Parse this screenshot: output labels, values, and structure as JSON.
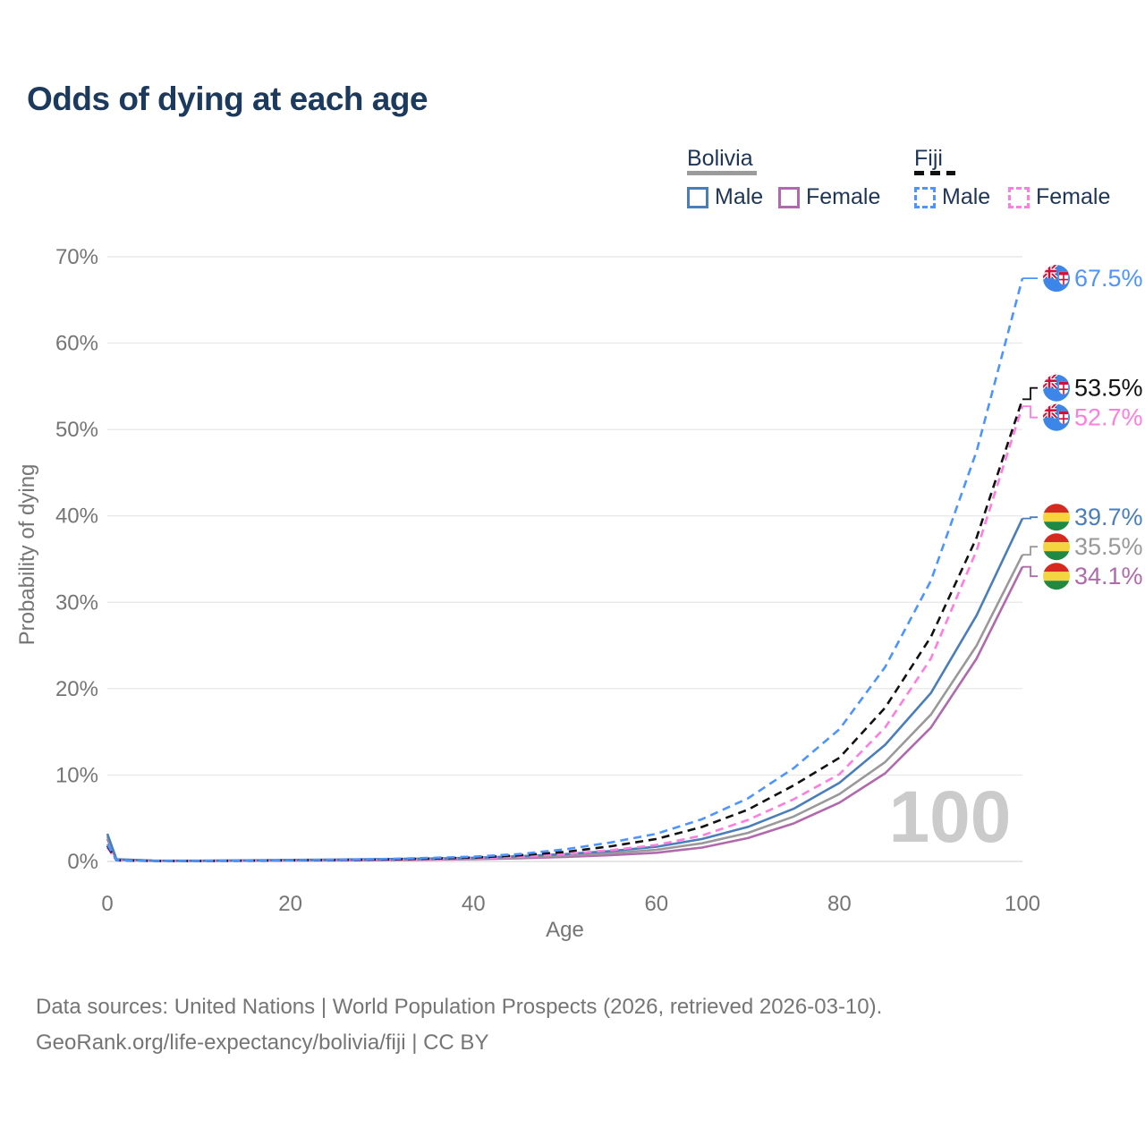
{
  "title": "Odds of dying at each age",
  "legend": {
    "groups": [
      {
        "label": "Bolivia",
        "swatch_color": "#9b9b9b",
        "dashed": false,
        "items": [
          {
            "label": "Male",
            "color": "#4a7ebb"
          },
          {
            "label": "Female",
            "color": "#b069ad"
          }
        ]
      },
      {
        "label": "Fiji",
        "swatch_color": "#111111",
        "dashed": true,
        "items": [
          {
            "label": "Male",
            "color": "#4d94ff"
          },
          {
            "label": "Female",
            "color": "#ff7ce0"
          }
        ]
      }
    ]
  },
  "chart_data": {
    "type": "line",
    "title": "Odds of dying at each age",
    "xlabel": "Age",
    "ylabel": "Probability of dying",
    "xlim": [
      0,
      100
    ],
    "ylim": [
      0,
      70
    ],
    "x_ticks": [
      0,
      20,
      40,
      60,
      80,
      100
    ],
    "y_ticks": [
      0,
      10,
      20,
      30,
      40,
      50,
      60,
      70
    ],
    "y_tick_suffix": "%",
    "grid": "horizontal",
    "legend_position": "top-right",
    "watermark": "100",
    "x": [
      0,
      1,
      5,
      10,
      15,
      20,
      25,
      30,
      35,
      40,
      45,
      50,
      55,
      60,
      65,
      70,
      75,
      80,
      85,
      90,
      95,
      100
    ],
    "series": [
      {
        "name": "Bolivia Female",
        "country": "Bolivia",
        "sex": "Female",
        "color": "#b069ad",
        "dashed": false,
        "flag": "bolivia",
        "end_label": "34.1%",
        "values": [
          2.6,
          0.2,
          0.07,
          0.06,
          0.08,
          0.1,
          0.12,
          0.15,
          0.2,
          0.26,
          0.36,
          0.52,
          0.72,
          1.0,
          1.6,
          2.7,
          4.4,
          6.8,
          10.2,
          15.5,
          23.5,
          34.1
        ]
      },
      {
        "name": "Bolivia Both sexes",
        "country": "Bolivia",
        "sex": "Both",
        "color": "#999999",
        "dashed": false,
        "flag": "bolivia",
        "end_label": "35.5%",
        "values": [
          2.9,
          0.22,
          0.08,
          0.07,
          0.1,
          0.14,
          0.17,
          0.21,
          0.26,
          0.33,
          0.47,
          0.67,
          0.95,
          1.35,
          2.1,
          3.3,
          5.2,
          7.8,
          11.5,
          17.0,
          25.0,
          35.5
        ]
      },
      {
        "name": "Bolivia Male",
        "country": "Bolivia",
        "sex": "Male",
        "color": "#4a7ebb",
        "dashed": false,
        "flag": "bolivia",
        "end_label": "39.7%",
        "values": [
          3.2,
          0.25,
          0.09,
          0.08,
          0.12,
          0.18,
          0.22,
          0.27,
          0.33,
          0.42,
          0.6,
          0.85,
          1.2,
          1.7,
          2.6,
          4.0,
          6.1,
          9.1,
          13.5,
          19.5,
          28.5,
          39.7
        ]
      },
      {
        "name": "Fiji Female",
        "country": "Fiji",
        "sex": "Female",
        "color": "#ff7ce0",
        "dashed": true,
        "flag": "fiji",
        "end_label": "52.7%",
        "values": [
          1.6,
          0.12,
          0.04,
          0.05,
          0.07,
          0.1,
          0.13,
          0.18,
          0.25,
          0.35,
          0.55,
          0.85,
          1.3,
          1.9,
          3.0,
          4.8,
          7.2,
          10.1,
          15.5,
          23.5,
          36.0,
          52.7
        ]
      },
      {
        "name": "Fiji Both sexes",
        "country": "Fiji",
        "sex": "Both",
        "color": "#111111",
        "dashed": true,
        "flag": "fiji",
        "end_label": "53.5%",
        "values": [
          1.8,
          0.13,
          0.05,
          0.05,
          0.08,
          0.13,
          0.17,
          0.23,
          0.32,
          0.45,
          0.7,
          1.1,
          1.75,
          2.6,
          4.0,
          6.0,
          8.8,
          12.0,
          17.8,
          26.0,
          37.5,
          53.5
        ]
      },
      {
        "name": "Fiji Male",
        "country": "Fiji",
        "sex": "Male",
        "color": "#4d94ff",
        "dashed": true,
        "flag": "fiji",
        "end_label": "67.5%",
        "values": [
          2.0,
          0.15,
          0.05,
          0.06,
          0.1,
          0.15,
          0.2,
          0.28,
          0.4,
          0.55,
          0.85,
          1.4,
          2.2,
          3.2,
          4.9,
          7.3,
          10.8,
          15.3,
          22.5,
          32.5,
          47.5,
          67.5
        ]
      }
    ]
  },
  "flags": {
    "bolivia": {
      "red": "#d52b1e",
      "yellow": "#f4d53f",
      "green": "#1e8a44"
    },
    "fiji": {
      "blue": "#3b86e8",
      "navy": "#1f3c87",
      "red": "#d0103a",
      "white": "#ffffff"
    }
  },
  "footer": {
    "line1": "Data sources: United Nations | World Population Prospects (2026, retrieved 2026-03-10).",
    "line2": "GeoRank.org/life-expectancy/bolivia/fiji | CC BY"
  }
}
